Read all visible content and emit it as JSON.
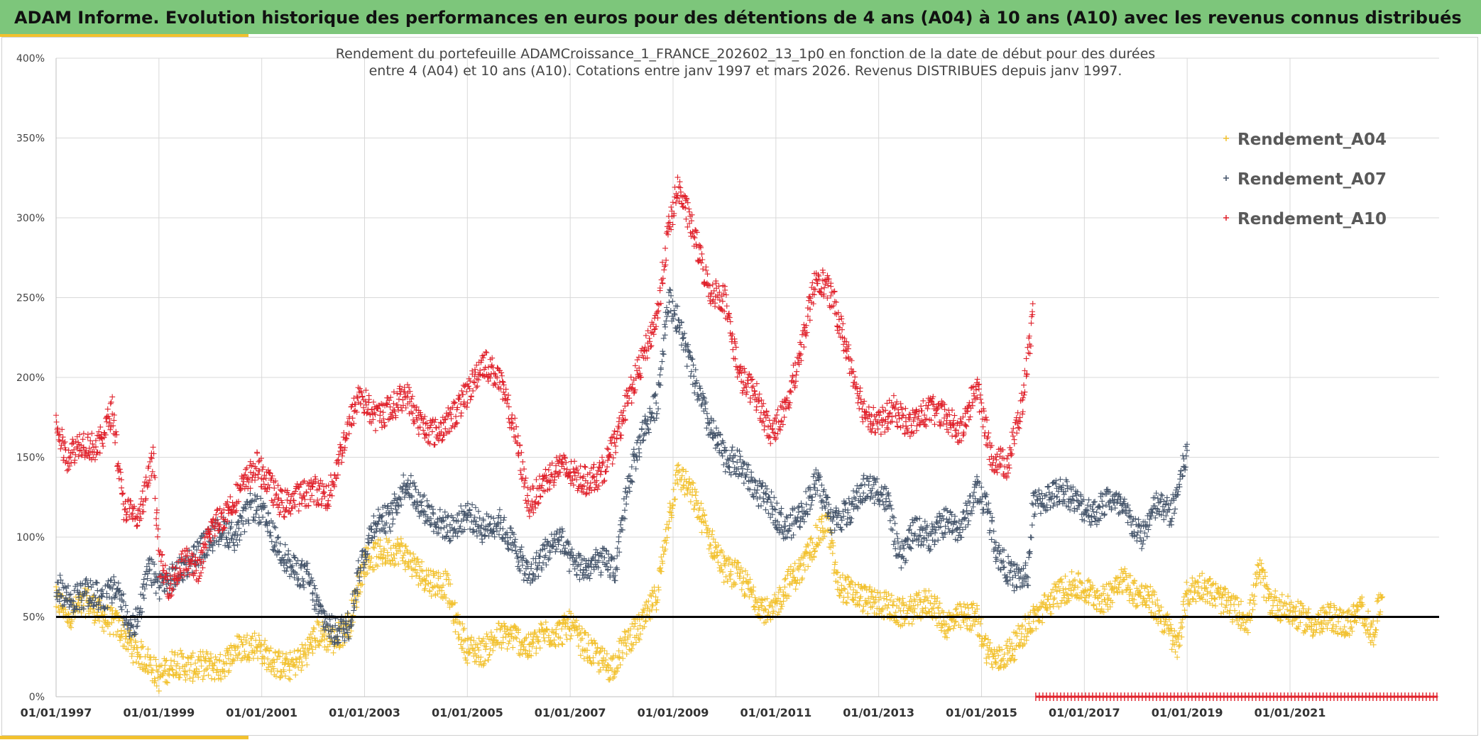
{
  "header": {
    "title": "ADAM Informe. Evolution historique des performances en euros pour des détentions de 4 ans (A04) à 10 ans (A10) avec les revenus connus distribués"
  },
  "chart_data": {
    "type": "scatter",
    "title_lines": [
      "Rendement du portefeuille ADAMCroissance_1_FRANCE_202602_13_1p0  en fonction de la date de début pour des durées",
      "entre 4 (A04) et 10 ans (A10). Cotations entre janv 1997 et mars 2026. Revenus DISTRIBUES depuis janv 1997."
    ],
    "xlabel": "",
    "ylabel": "",
    "x_range": [
      1997.0,
      2023.9
    ],
    "ylim": [
      0,
      400
    ],
    "y_ticks": [
      "0%",
      "50%",
      "100%",
      "150%",
      "200%",
      "250%",
      "300%",
      "350%",
      "400%"
    ],
    "x_ticks": [
      {
        "label": "01/01/1997",
        "x": 1997
      },
      {
        "label": "01/01/1999",
        "x": 1999
      },
      {
        "label": "01/01/2001",
        "x": 2001
      },
      {
        "label": "01/01/2003",
        "x": 2003
      },
      {
        "label": "01/01/2005",
        "x": 2005
      },
      {
        "label": "01/01/2007",
        "x": 2007
      },
      {
        "label": "01/01/2009",
        "x": 2009
      },
      {
        "label": "01/01/2011",
        "x": 2011
      },
      {
        "label": "01/01/2013",
        "x": 2013
      },
      {
        "label": "01/01/2015",
        "x": 2015
      },
      {
        "label": "01/01/2017",
        "x": 2017
      },
      {
        "label": "01/01/2019",
        "x": 2019
      },
      {
        "label": "01/01/2021",
        "x": 2021
      }
    ],
    "reference_line": {
      "y": 50,
      "color": "#000000"
    },
    "grid": true,
    "legend_position": "top-right",
    "series": [
      {
        "name": "Rendement_A04",
        "color": "#f2c12e",
        "x_end": 2022.8,
        "keypoints": [
          [
            1997.0,
            60
          ],
          [
            1997.3,
            52
          ],
          [
            1997.6,
            60
          ],
          [
            1997.9,
            50
          ],
          [
            1998.2,
            45
          ],
          [
            1998.5,
            30
          ],
          [
            1998.8,
            22
          ],
          [
            1999.0,
            12
          ],
          [
            1999.3,
            22
          ],
          [
            1999.6,
            18
          ],
          [
            1999.9,
            20
          ],
          [
            2000.2,
            18
          ],
          [
            2000.5,
            30
          ],
          [
            2000.9,
            33
          ],
          [
            2001.2,
            22
          ],
          [
            2001.5,
            18
          ],
          [
            2001.8,
            25
          ],
          [
            2002.1,
            40
          ],
          [
            2002.4,
            35
          ],
          [
            2002.7,
            45
          ],
          [
            2003.0,
            85
          ],
          [
            2003.3,
            90
          ],
          [
            2003.7,
            92
          ],
          [
            2004.0,
            80
          ],
          [
            2004.3,
            72
          ],
          [
            2004.6,
            70
          ],
          [
            2004.8,
            45
          ],
          [
            2005.0,
            30
          ],
          [
            2005.3,
            28
          ],
          [
            2005.6,
            38
          ],
          [
            2005.9,
            38
          ],
          [
            2006.2,
            30
          ],
          [
            2006.5,
            40
          ],
          [
            2006.8,
            40
          ],
          [
            2007.0,
            45
          ],
          [
            2007.2,
            35
          ],
          [
            2007.5,
            25
          ],
          [
            2007.8,
            18
          ],
          [
            2008.1,
            35
          ],
          [
            2008.4,
            45
          ],
          [
            2008.7,
            65
          ],
          [
            2008.9,
            110
          ],
          [
            2009.1,
            140
          ],
          [
            2009.4,
            125
          ],
          [
            2009.7,
            100
          ],
          [
            2010.0,
            80
          ],
          [
            2010.3,
            75
          ],
          [
            2010.6,
            62
          ],
          [
            2010.9,
            50
          ],
          [
            2011.2,
            70
          ],
          [
            2011.5,
            80
          ],
          [
            2011.8,
            100
          ],
          [
            2012.0,
            110
          ],
          [
            2012.2,
            70
          ],
          [
            2012.5,
            65
          ],
          [
            2012.8,
            60
          ],
          [
            2013.1,
            58
          ],
          [
            2013.4,
            52
          ],
          [
            2013.7,
            55
          ],
          [
            2014.0,
            60
          ],
          [
            2014.3,
            45
          ],
          [
            2014.6,
            50
          ],
          [
            2014.9,
            50
          ],
          [
            2015.1,
            30
          ],
          [
            2015.3,
            22
          ],
          [
            2015.6,
            30
          ],
          [
            2015.9,
            45
          ],
          [
            2016.2,
            55
          ],
          [
            2016.5,
            65
          ],
          [
            2016.8,
            70
          ],
          [
            2017.1,
            65
          ],
          [
            2017.4,
            60
          ],
          [
            2017.7,
            75
          ],
          [
            2018.0,
            65
          ],
          [
            2018.3,
            60
          ],
          [
            2018.6,
            45
          ],
          [
            2018.8,
            30
          ],
          [
            2019.0,
            65
          ],
          [
            2019.3,
            70
          ],
          [
            2019.6,
            62
          ],
          [
            2019.9,
            55
          ],
          [
            2020.2,
            48
          ],
          [
            2020.4,
            80
          ],
          [
            2020.6,
            60
          ],
          [
            2020.9,
            55
          ],
          [
            2021.2,
            50
          ],
          [
            2021.5,
            45
          ],
          [
            2021.8,
            50
          ],
          [
            2022.1,
            45
          ],
          [
            2022.4,
            55
          ],
          [
            2022.6,
            38
          ],
          [
            2022.8,
            65
          ]
        ]
      },
      {
        "name": "Rendement_A07",
        "color": "#44546a",
        "x_end": 2019.0,
        "keypoints": [
          [
            1997.0,
            70
          ],
          [
            1997.3,
            60
          ],
          [
            1997.6,
            65
          ],
          [
            1997.9,
            62
          ],
          [
            1998.2,
            68
          ],
          [
            1998.4,
            45
          ],
          [
            1998.6,
            48
          ],
          [
            1998.8,
            80
          ],
          [
            1999.0,
            70
          ],
          [
            1999.3,
            75
          ],
          [
            1999.6,
            85
          ],
          [
            1999.9,
            95
          ],
          [
            2000.2,
            105
          ],
          [
            2000.5,
            100
          ],
          [
            2000.8,
            120
          ],
          [
            2001.0,
            115
          ],
          [
            2001.3,
            95
          ],
          [
            2001.6,
            80
          ],
          [
            2001.9,
            75
          ],
          [
            2002.1,
            55
          ],
          [
            2002.4,
            40
          ],
          [
            2002.7,
            45
          ],
          [
            2002.9,
            80
          ],
          [
            2003.2,
            110
          ],
          [
            2003.5,
            112
          ],
          [
            2003.8,
            135
          ],
          [
            2004.1,
            120
          ],
          [
            2004.4,
            110
          ],
          [
            2004.7,
            105
          ],
          [
            2005.0,
            115
          ],
          [
            2005.3,
            105
          ],
          [
            2005.6,
            110
          ],
          [
            2005.9,
            95
          ],
          [
            2006.2,
            75
          ],
          [
            2006.5,
            90
          ],
          [
            2006.8,
            100
          ],
          [
            2007.0,
            85
          ],
          [
            2007.3,
            80
          ],
          [
            2007.6,
            85
          ],
          [
            2007.9,
            80
          ],
          [
            2008.1,
            130
          ],
          [
            2008.4,
            165
          ],
          [
            2008.7,
            185
          ],
          [
            2008.9,
            250
          ],
          [
            2009.1,
            235
          ],
          [
            2009.4,
            200
          ],
          [
            2009.7,
            170
          ],
          [
            2010.0,
            150
          ],
          [
            2010.3,
            145
          ],
          [
            2010.6,
            130
          ],
          [
            2010.9,
            120
          ],
          [
            2011.2,
            105
          ],
          [
            2011.5,
            115
          ],
          [
            2011.8,
            135
          ],
          [
            2012.1,
            110
          ],
          [
            2012.4,
            115
          ],
          [
            2012.7,
            130
          ],
          [
            2013.0,
            130
          ],
          [
            2013.2,
            120
          ],
          [
            2013.4,
            85
          ],
          [
            2013.7,
            105
          ],
          [
            2014.0,
            100
          ],
          [
            2014.3,
            110
          ],
          [
            2014.6,
            105
          ],
          [
            2014.9,
            130
          ],
          [
            2015.1,
            120
          ],
          [
            2015.3,
            90
          ],
          [
            2015.6,
            75
          ],
          [
            2015.9,
            75
          ],
          [
            2016.0,
            120
          ],
          [
            2016.3,
            125
          ],
          [
            2016.6,
            130
          ],
          [
            2016.9,
            120
          ],
          [
            2017.2,
            115
          ],
          [
            2017.5,
            125
          ],
          [
            2017.8,
            115
          ],
          [
            2018.1,
            100
          ],
          [
            2018.4,
            120
          ],
          [
            2018.7,
            115
          ],
          [
            2018.9,
            140
          ],
          [
            2019.0,
            155
          ]
        ]
      },
      {
        "name": "Rendement_A10",
        "color": "#e0202a",
        "x_end": 2016.0,
        "keypoints": [
          [
            1997.0,
            170
          ],
          [
            1997.2,
            150
          ],
          [
            1997.5,
            160
          ],
          [
            1997.8,
            155
          ],
          [
            1998.1,
            180
          ],
          [
            1998.3,
            120
          ],
          [
            1998.6,
            110
          ],
          [
            1998.9,
            150
          ],
          [
            1999.0,
            85
          ],
          [
            1999.2,
            70
          ],
          [
            1999.5,
            85
          ],
          [
            1999.8,
            80
          ],
          [
            2000.0,
            105
          ],
          [
            2000.3,
            115
          ],
          [
            2000.6,
            130
          ],
          [
            2000.9,
            145
          ],
          [
            2001.1,
            135
          ],
          [
            2001.4,
            120
          ],
          [
            2001.7,
            125
          ],
          [
            2002.0,
            130
          ],
          [
            2002.3,
            125
          ],
          [
            2002.6,
            160
          ],
          [
            2002.9,
            190
          ],
          [
            2003.2,
            175
          ],
          [
            2003.5,
            180
          ],
          [
            2003.8,
            190
          ],
          [
            2004.1,
            170
          ],
          [
            2004.4,
            165
          ],
          [
            2004.7,
            175
          ],
          [
            2005.0,
            190
          ],
          [
            2005.3,
            210
          ],
          [
            2005.6,
            200
          ],
          [
            2005.9,
            170
          ],
          [
            2006.2,
            120
          ],
          [
            2006.5,
            135
          ],
          [
            2006.8,
            145
          ],
          [
            2007.0,
            140
          ],
          [
            2007.3,
            135
          ],
          [
            2007.6,
            140
          ],
          [
            2007.9,
            160
          ],
          [
            2008.1,
            185
          ],
          [
            2008.4,
            210
          ],
          [
            2008.7,
            240
          ],
          [
            2008.9,
            290
          ],
          [
            2009.1,
            320
          ],
          [
            2009.4,
            290
          ],
          [
            2009.7,
            255
          ],
          [
            2010.0,
            250
          ],
          [
            2010.3,
            200
          ],
          [
            2010.6,
            190
          ],
          [
            2010.9,
            165
          ],
          [
            2011.2,
            180
          ],
          [
            2011.5,
            220
          ],
          [
            2011.8,
            265
          ],
          [
            2012.1,
            250
          ],
          [
            2012.4,
            215
          ],
          [
            2012.7,
            180
          ],
          [
            2013.0,
            170
          ],
          [
            2013.3,
            180
          ],
          [
            2013.6,
            170
          ],
          [
            2014.0,
            180
          ],
          [
            2014.3,
            175
          ],
          [
            2014.6,
            165
          ],
          [
            2014.9,
            195
          ],
          [
            2015.2,
            150
          ],
          [
            2015.5,
            145
          ],
          [
            2015.8,
            185
          ],
          [
            2016.0,
            240
          ]
        ]
      }
    ]
  }
}
